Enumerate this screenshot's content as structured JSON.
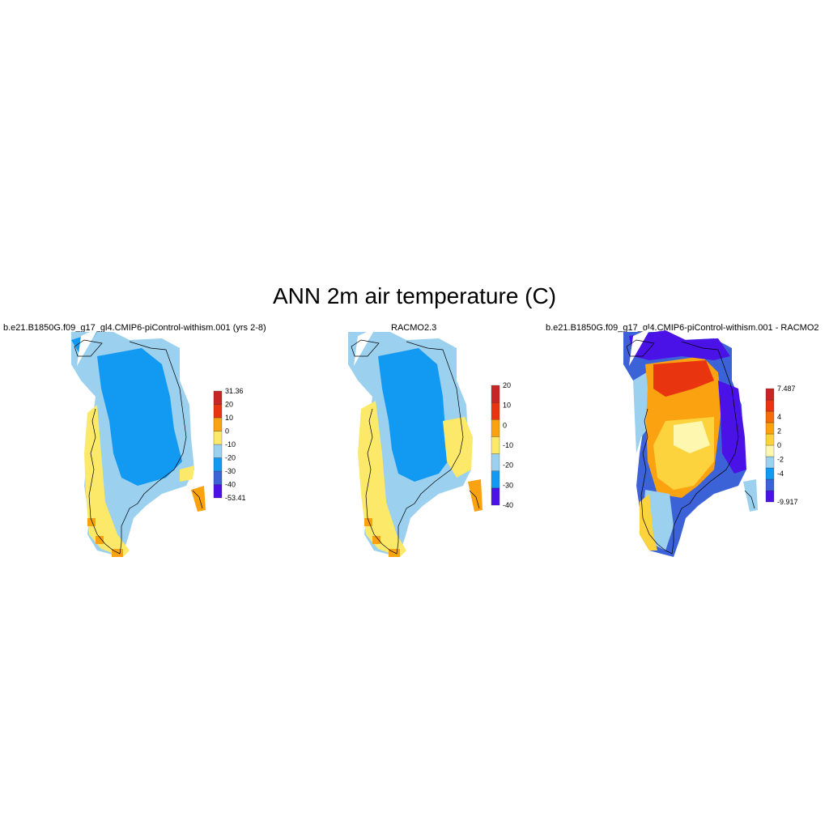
{
  "title": "ANN 2m air temperature (C)",
  "panels": [
    {
      "title": "b.e21.B1850G.f09_g17_gl4.CMIP6-piControl-withism.001 (yrs 2-8)",
      "colorbar": {
        "colors": [
          "#4b12e8",
          "#3c62d8",
          "#1299f2",
          "#9bd0ef",
          "#fce96a",
          "#fba210",
          "#e8340f",
          "#c82626"
        ],
        "labels": [
          "-53.41",
          "-40",
          "-30",
          "-20",
          "-10",
          "0",
          "10",
          "20",
          "31.36"
        ]
      },
      "fill": {
        "outer": "#9bd0ef",
        "inner": "#1299f2",
        "coast": "#fce96a",
        "edge": "#fba210"
      }
    },
    {
      "title": "RACMO2.3",
      "colorbar": {
        "colors": [
          "#4b12e8",
          "#1299f2",
          "#9bd0ef",
          "#fce96a",
          "#fba210",
          "#e8340f",
          "#c82626"
        ],
        "labels": [
          "-40",
          "-30",
          "-20",
          "-10",
          "0",
          "10",
          "20"
        ]
      },
      "fill": {
        "outer": "#9bd0ef",
        "inner": "#1299f2",
        "coast": "#fce96a",
        "edge": "#fba210"
      }
    },
    {
      "title": "b.e21.B1850G.f09_g17_gl4.CMIP6-piControl-withism.001 - RACMO2",
      "colorbar": {
        "colors": [
          "#4b12e8",
          "#3c62d8",
          "#1299f2",
          "#9bd0ef",
          "#fdf7b0",
          "#fcd23d",
          "#fba210",
          "#f46c0c",
          "#e8340f",
          "#c82626"
        ],
        "labels": [
          "-9.917",
          "",
          "-4",
          "-2",
          "0",
          "2",
          "4",
          "",
          "7.487"
        ]
      },
      "fill": {
        "outer": "#3c62d8",
        "inner": "#fba210",
        "coast": "#fcd23d",
        "edge": "#4b12e8",
        "hot": "#e8340f",
        "pale": "#fdf7b0",
        "light": "#9bd0ef"
      }
    }
  ]
}
